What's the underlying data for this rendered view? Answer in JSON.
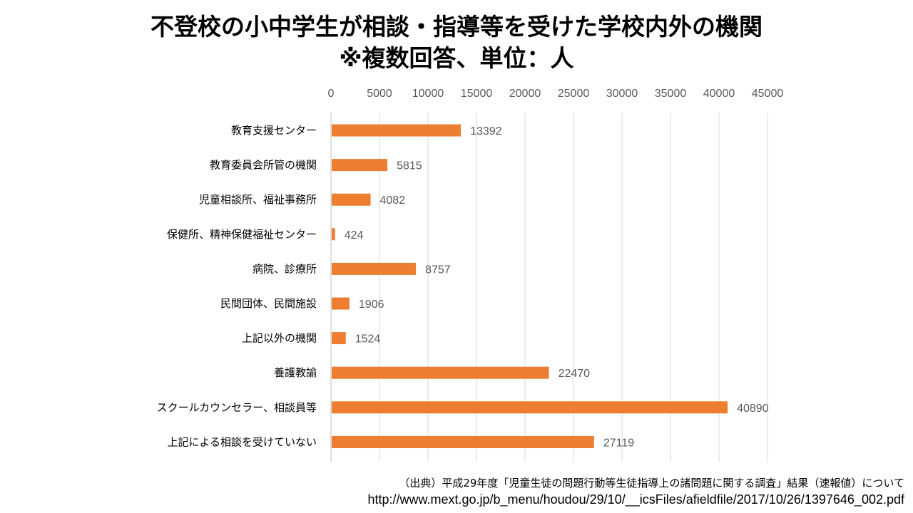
{
  "title_lines": [
    "不登校の小中学生が相談・指導等を受けた学校内外の機関",
    "※複数回答、単位：人"
  ],
  "source_lines": [
    "（出典）平成29年度「児童生徒の問題行動等生徒指導上の諸問題に関する調査」結果（速報値）について",
    "http://www.mext.go.jp/b_menu/houdou/29/10/__icsFiles/afieldfile/2017/10/26/1397646_002.pdf"
  ],
  "chart_data": {
    "type": "bar",
    "orientation": "horizontal",
    "title": "不登校の小中学生が相談・指導等を受けた学校内外の機関 ※複数回答、単位：人",
    "xlabel": "",
    "ylabel": "",
    "xlim": [
      0,
      45000
    ],
    "x_ticks": [
      0,
      5000,
      10000,
      15000,
      20000,
      25000,
      30000,
      35000,
      40000,
      45000
    ],
    "x_axis_position": "top",
    "grid": true,
    "legend": "none",
    "bar_color": "#ED7D31",
    "categories": [
      "教育支援センター",
      "教育委員会所管の機関",
      "児童相談所、福祉事務所",
      "保健所、精神保健福祉センター",
      "病院、診療所",
      "民間団体、民間施設",
      "上記以外の機関",
      "養護教諭",
      "スクールカウンセラー、相談員等",
      "上記による相談を受けていない"
    ],
    "values": [
      13392,
      5815,
      4082,
      424,
      8757,
      1906,
      1524,
      22470,
      40890,
      27119
    ],
    "data_labels": [
      "13392",
      "5815",
      "4082",
      "424",
      "8757",
      "1906",
      "1524",
      "22470",
      "40890",
      "27119"
    ]
  }
}
